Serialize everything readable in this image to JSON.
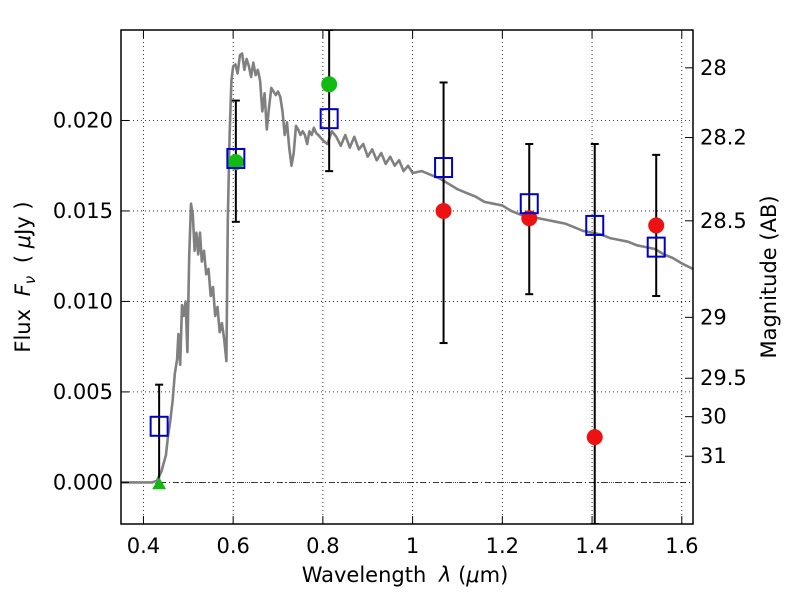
{
  "chart_data": {
    "type": "scatter",
    "xlabel_text": "Wavelength",
    "xlabel_var": "λ",
    "xlabel_unit_open": "(",
    "xlabel_unit_mu": "μ",
    "xlabel_unit_rest": "m)",
    "ylabel_text": "Flux",
    "ylabel_var": "F",
    "ylabel_sub": "ν",
    "ylabel_unit_open": "(",
    "ylabel_unit_mu": "μ",
    "ylabel_unit_rest": "Jy )",
    "y2label": "Magnitude (AB)",
    "xlim": [
      0.35,
      1.625
    ],
    "ylim": [
      -0.0023,
      0.025
    ],
    "x_ticks": [
      0.4,
      0.6,
      0.8,
      1.0,
      1.2,
      1.4,
      1.6
    ],
    "x_tick_labels": [
      "0.4",
      "0.6",
      "0.8",
      "1",
      "1.2",
      "1.4",
      "1.6"
    ],
    "y_ticks": [
      0.0,
      0.005,
      0.01,
      0.015,
      0.02
    ],
    "y_tick_labels": [
      "0.000",
      "0.005",
      "0.010",
      "0.015",
      "0.020"
    ],
    "y2_ticks": [
      28,
      28.2,
      28.5,
      29,
      29.5,
      30,
      31
    ],
    "y2_tick_labels": [
      "28",
      "28.2",
      "28.5",
      "29",
      "29.5",
      "30",
      "31"
    ],
    "grid": true,
    "colors": {
      "model": "#808080",
      "model_box": "#0000cc",
      "detection": "#ee1111",
      "secondary_detection": "#11bb11",
      "errorbar": "#000000"
    },
    "model_spectrum": [
      [
        0.35,
        0.0
      ],
      [
        0.42,
        0.0
      ],
      [
        0.43,
        0.0001
      ],
      [
        0.44,
        0.0006
      ],
      [
        0.45,
        0.0015
      ],
      [
        0.455,
        0.0026
      ],
      [
        0.46,
        0.0034
      ],
      [
        0.465,
        0.0045
      ],
      [
        0.47,
        0.006
      ],
      [
        0.475,
        0.0068
      ],
      [
        0.478,
        0.0082
      ],
      [
        0.482,
        0.0065
      ],
      [
        0.486,
        0.0098
      ],
      [
        0.49,
        0.0092
      ],
      [
        0.494,
        0.01
      ],
      [
        0.498,
        0.0072
      ],
      [
        0.502,
        0.0125
      ],
      [
        0.506,
        0.0154
      ],
      [
        0.51,
        0.0148
      ],
      [
        0.514,
        0.0128
      ],
      [
        0.518,
        0.0138
      ],
      [
        0.522,
        0.0126
      ],
      [
        0.526,
        0.0138
      ],
      [
        0.53,
        0.0122
      ],
      [
        0.535,
        0.0128
      ],
      [
        0.54,
        0.0115
      ],
      [
        0.545,
        0.0118
      ],
      [
        0.55,
        0.0103
      ],
      [
        0.555,
        0.0108
      ],
      [
        0.56,
        0.0092
      ],
      [
        0.565,
        0.0097
      ],
      [
        0.57,
        0.0083
      ],
      [
        0.575,
        0.0088
      ],
      [
        0.58,
        0.0079
      ],
      [
        0.585,
        0.0067
      ],
      [
        0.588,
        0.0145
      ],
      [
        0.592,
        0.0192
      ],
      [
        0.596,
        0.0222
      ],
      [
        0.6,
        0.023
      ],
      [
        0.605,
        0.0231
      ],
      [
        0.61,
        0.0226
      ],
      [
        0.615,
        0.0236
      ],
      [
        0.62,
        0.0237
      ],
      [
        0.625,
        0.0228
      ],
      [
        0.63,
        0.0234
      ],
      [
        0.635,
        0.023
      ],
      [
        0.64,
        0.0224
      ],
      [
        0.645,
        0.0232
      ],
      [
        0.65,
        0.0225
      ],
      [
        0.655,
        0.0228
      ],
      [
        0.66,
        0.0222
      ],
      [
        0.665,
        0.0205
      ],
      [
        0.67,
        0.0215
      ],
      [
        0.675,
        0.0195
      ],
      [
        0.68,
        0.0207
      ],
      [
        0.685,
        0.0218
      ],
      [
        0.69,
        0.0216
      ],
      [
        0.695,
        0.0214
      ],
      [
        0.7,
        0.0216
      ],
      [
        0.705,
        0.0213
      ],
      [
        0.71,
        0.0205
      ],
      [
        0.715,
        0.0192
      ],
      [
        0.72,
        0.0199
      ],
      [
        0.725,
        0.0185
      ],
      [
        0.73,
        0.0175
      ],
      [
        0.735,
        0.0182
      ],
      [
        0.74,
        0.0197
      ],
      [
        0.745,
        0.0195
      ],
      [
        0.75,
        0.0192
      ],
      [
        0.755,
        0.0194
      ],
      [
        0.76,
        0.0192
      ],
      [
        0.765,
        0.0187
      ],
      [
        0.77,
        0.0194
      ],
      [
        0.775,
        0.0192
      ],
      [
        0.78,
        0.0196
      ],
      [
        0.785,
        0.0193
      ],
      [
        0.79,
        0.0192
      ],
      [
        0.8,
        0.0189
      ],
      [
        0.81,
        0.0187
      ],
      [
        0.82,
        0.0194
      ],
      [
        0.83,
        0.0191
      ],
      [
        0.84,
        0.0186
      ],
      [
        0.85,
        0.0192
      ],
      [
        0.86,
        0.0185
      ],
      [
        0.87,
        0.0191
      ],
      [
        0.88,
        0.0184
      ],
      [
        0.89,
        0.0187
      ],
      [
        0.9,
        0.018
      ],
      [
        0.91,
        0.0184
      ],
      [
        0.92,
        0.0178
      ],
      [
        0.93,
        0.0182
      ],
      [
        0.94,
        0.0176
      ],
      [
        0.95,
        0.018
      ],
      [
        0.96,
        0.0175
      ],
      [
        0.97,
        0.0178
      ],
      [
        0.98,
        0.0172
      ],
      [
        0.99,
        0.0175
      ],
      [
        1.0,
        0.0171
      ],
      [
        1.02,
        0.0172
      ],
      [
        1.04,
        0.017
      ],
      [
        1.06,
        0.0168
      ],
      [
        1.08,
        0.0165
      ],
      [
        1.1,
        0.0162
      ],
      [
        1.12,
        0.016
      ],
      [
        1.14,
        0.0158
      ],
      [
        1.16,
        0.0155
      ],
      [
        1.18,
        0.0154
      ],
      [
        1.2,
        0.0153
      ],
      [
        1.22,
        0.015
      ],
      [
        1.24,
        0.0148
      ],
      [
        1.26,
        0.0147
      ],
      [
        1.28,
        0.0146
      ],
      [
        1.3,
        0.0145
      ],
      [
        1.32,
        0.0144
      ],
      [
        1.34,
        0.0143
      ],
      [
        1.36,
        0.0141
      ],
      [
        1.38,
        0.0139
      ],
      [
        1.4,
        0.0138
      ],
      [
        1.42,
        0.0137
      ],
      [
        1.44,
        0.0135
      ],
      [
        1.46,
        0.0134
      ],
      [
        1.48,
        0.0133
      ],
      [
        1.5,
        0.0131
      ],
      [
        1.52,
        0.013
      ],
      [
        1.54,
        0.0129
      ],
      [
        1.56,
        0.0126
      ],
      [
        1.58,
        0.0124
      ],
      [
        1.6,
        0.0121
      ],
      [
        1.625,
        0.0118
      ]
    ],
    "model_band_fluxes": [
      {
        "x": 0.435,
        "y": 0.0031
      },
      {
        "x": 0.606,
        "y": 0.0179
      },
      {
        "x": 0.814,
        "y": 0.0201
      },
      {
        "x": 1.069,
        "y": 0.0174
      },
      {
        "x": 1.26,
        "y": 0.0154
      },
      {
        "x": 1.406,
        "y": 0.0142
      },
      {
        "x": 1.543,
        "y": 0.013
      }
    ],
    "detections": [
      {
        "x": 1.069,
        "y": 0.015,
        "err_low": 0.0077,
        "err_high": 0.0221
      },
      {
        "x": 1.26,
        "y": 0.0146,
        "err_low": 0.0104,
        "err_high": 0.0187
      },
      {
        "x": 1.406,
        "y": 0.0025,
        "err_low": -0.0023,
        "err_high": 0.0187
      },
      {
        "x": 1.543,
        "y": 0.0142,
        "err_low": 0.0103,
        "err_high": 0.0181
      }
    ],
    "secondary_detections": [
      {
        "x": 0.606,
        "y": 0.0177,
        "err_low": 0.0144,
        "err_high": 0.0211
      },
      {
        "x": 0.814,
        "y": 0.022,
        "err_low": 0.0172,
        "err_high": 0.025
      }
    ],
    "upper_limits": [
      {
        "x": 0.435,
        "y": -0.0001,
        "err_low": -0.0001,
        "err_high": 0.0054
      }
    ]
  }
}
